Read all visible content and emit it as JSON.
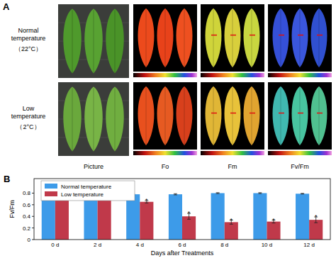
{
  "panel_a": {
    "label": "A",
    "rows": [
      {
        "label": "Normal temperature",
        "condition": "（22°C）"
      },
      {
        "label": "Low temperature",
        "condition": "（2°C）"
      }
    ],
    "columns": [
      "Picture",
      "Fo",
      "Fm",
      "Fv/Fm"
    ]
  },
  "chart_data": {
    "type": "bar",
    "panel_label": "B",
    "categories": [
      "0 d",
      "2 d",
      "4 d",
      "6 d",
      "8 d",
      "10 d",
      "12 d"
    ],
    "x_label": "Days after Treatments",
    "y_label": "Fv/Fm",
    "ylim": [
      0,
      1.05
    ],
    "yticks": [
      0,
      0.2,
      0.4,
      0.6,
      0.8
    ],
    "legend": "upper left",
    "series": [
      {
        "name": "Normal temperature",
        "color": "#3d9be9",
        "values": [
          0.79,
          0.8,
          0.78,
          0.78,
          0.8,
          0.8,
          0.79
        ],
        "errors": [
          0.005,
          0.005,
          0.01,
          0.01,
          0.008,
          0.008,
          0.006
        ]
      },
      {
        "name": "Low temperature",
        "color": "#c0394a",
        "values": [
          0.78,
          0.77,
          0.65,
          0.4,
          0.3,
          0.31,
          0.34
        ],
        "errors": [
          0.01,
          0.015,
          0.02,
          0.05,
          0.035,
          0.025,
          0.05
        ],
        "significance": [
          null,
          null,
          "*",
          "*",
          "*",
          "*",
          "*"
        ]
      }
    ]
  }
}
